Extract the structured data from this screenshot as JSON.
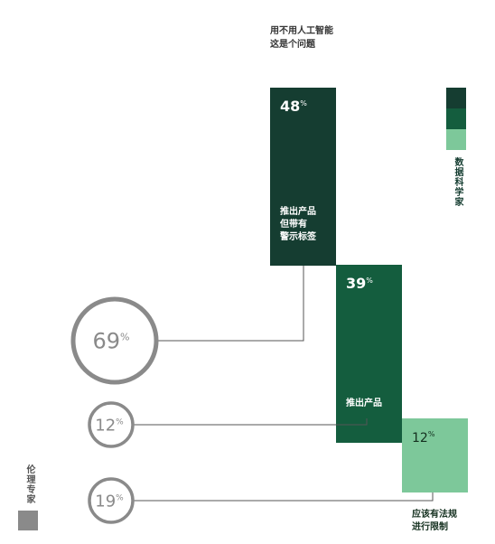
{
  "chart_data": {
    "type": "bar",
    "title": "用不用人工智能\n这是个问题",
    "series": [
      {
        "name": "数据科学家",
        "categories": [
          "推出产品\n但带有\n警示标签",
          "推出产品",
          "应该有法规\n进行限制"
        ],
        "values": [
          48,
          39,
          12
        ],
        "colors": [
          "#153d31",
          "#145d3e",
          "#7dc89a"
        ]
      },
      {
        "name": "伦理专家",
        "values": [
          69,
          12,
          19
        ],
        "color": "#8a8a8a"
      }
    ],
    "unit": "%"
  },
  "legend": {
    "data_scientists": {
      "label": "数据科学家",
      "colors": [
        "#153d31",
        "#145d3e",
        "#7dc89a"
      ]
    },
    "ethicists": {
      "label": "伦理专家",
      "color": "#8a8a8a"
    }
  }
}
